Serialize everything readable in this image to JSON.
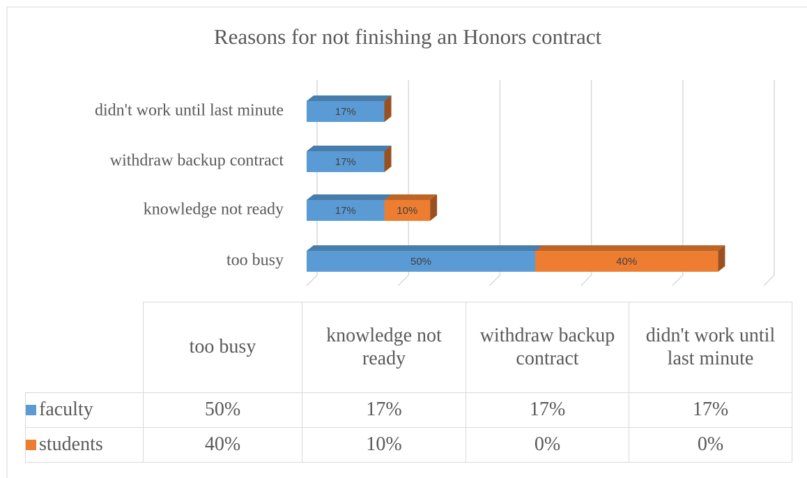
{
  "chart_data": {
    "type": "stacked_bar_horizontal",
    "title": "Reasons for not finishing an Honors contract",
    "categories": [
      "too busy",
      "knowledge not ready",
      "withdraw backup contract",
      "didn't work until last minute"
    ],
    "series": [
      {
        "name": "faculty",
        "color": "#5b9bd5",
        "values": [
          50,
          17,
          17,
          17
        ],
        "value_labels": [
          "50%",
          "17%",
          "17%",
          "17%"
        ]
      },
      {
        "name": "students",
        "color": "#ed7d31",
        "values": [
          40,
          10,
          0,
          0
        ],
        "value_labels": [
          "40%",
          "10%",
          "0%",
          "0%"
        ]
      }
    ],
    "xlim": [
      0,
      100
    ],
    "xticks": [
      0,
      20,
      40,
      60,
      80,
      100
    ],
    "grid": true,
    "data_table": true
  }
}
